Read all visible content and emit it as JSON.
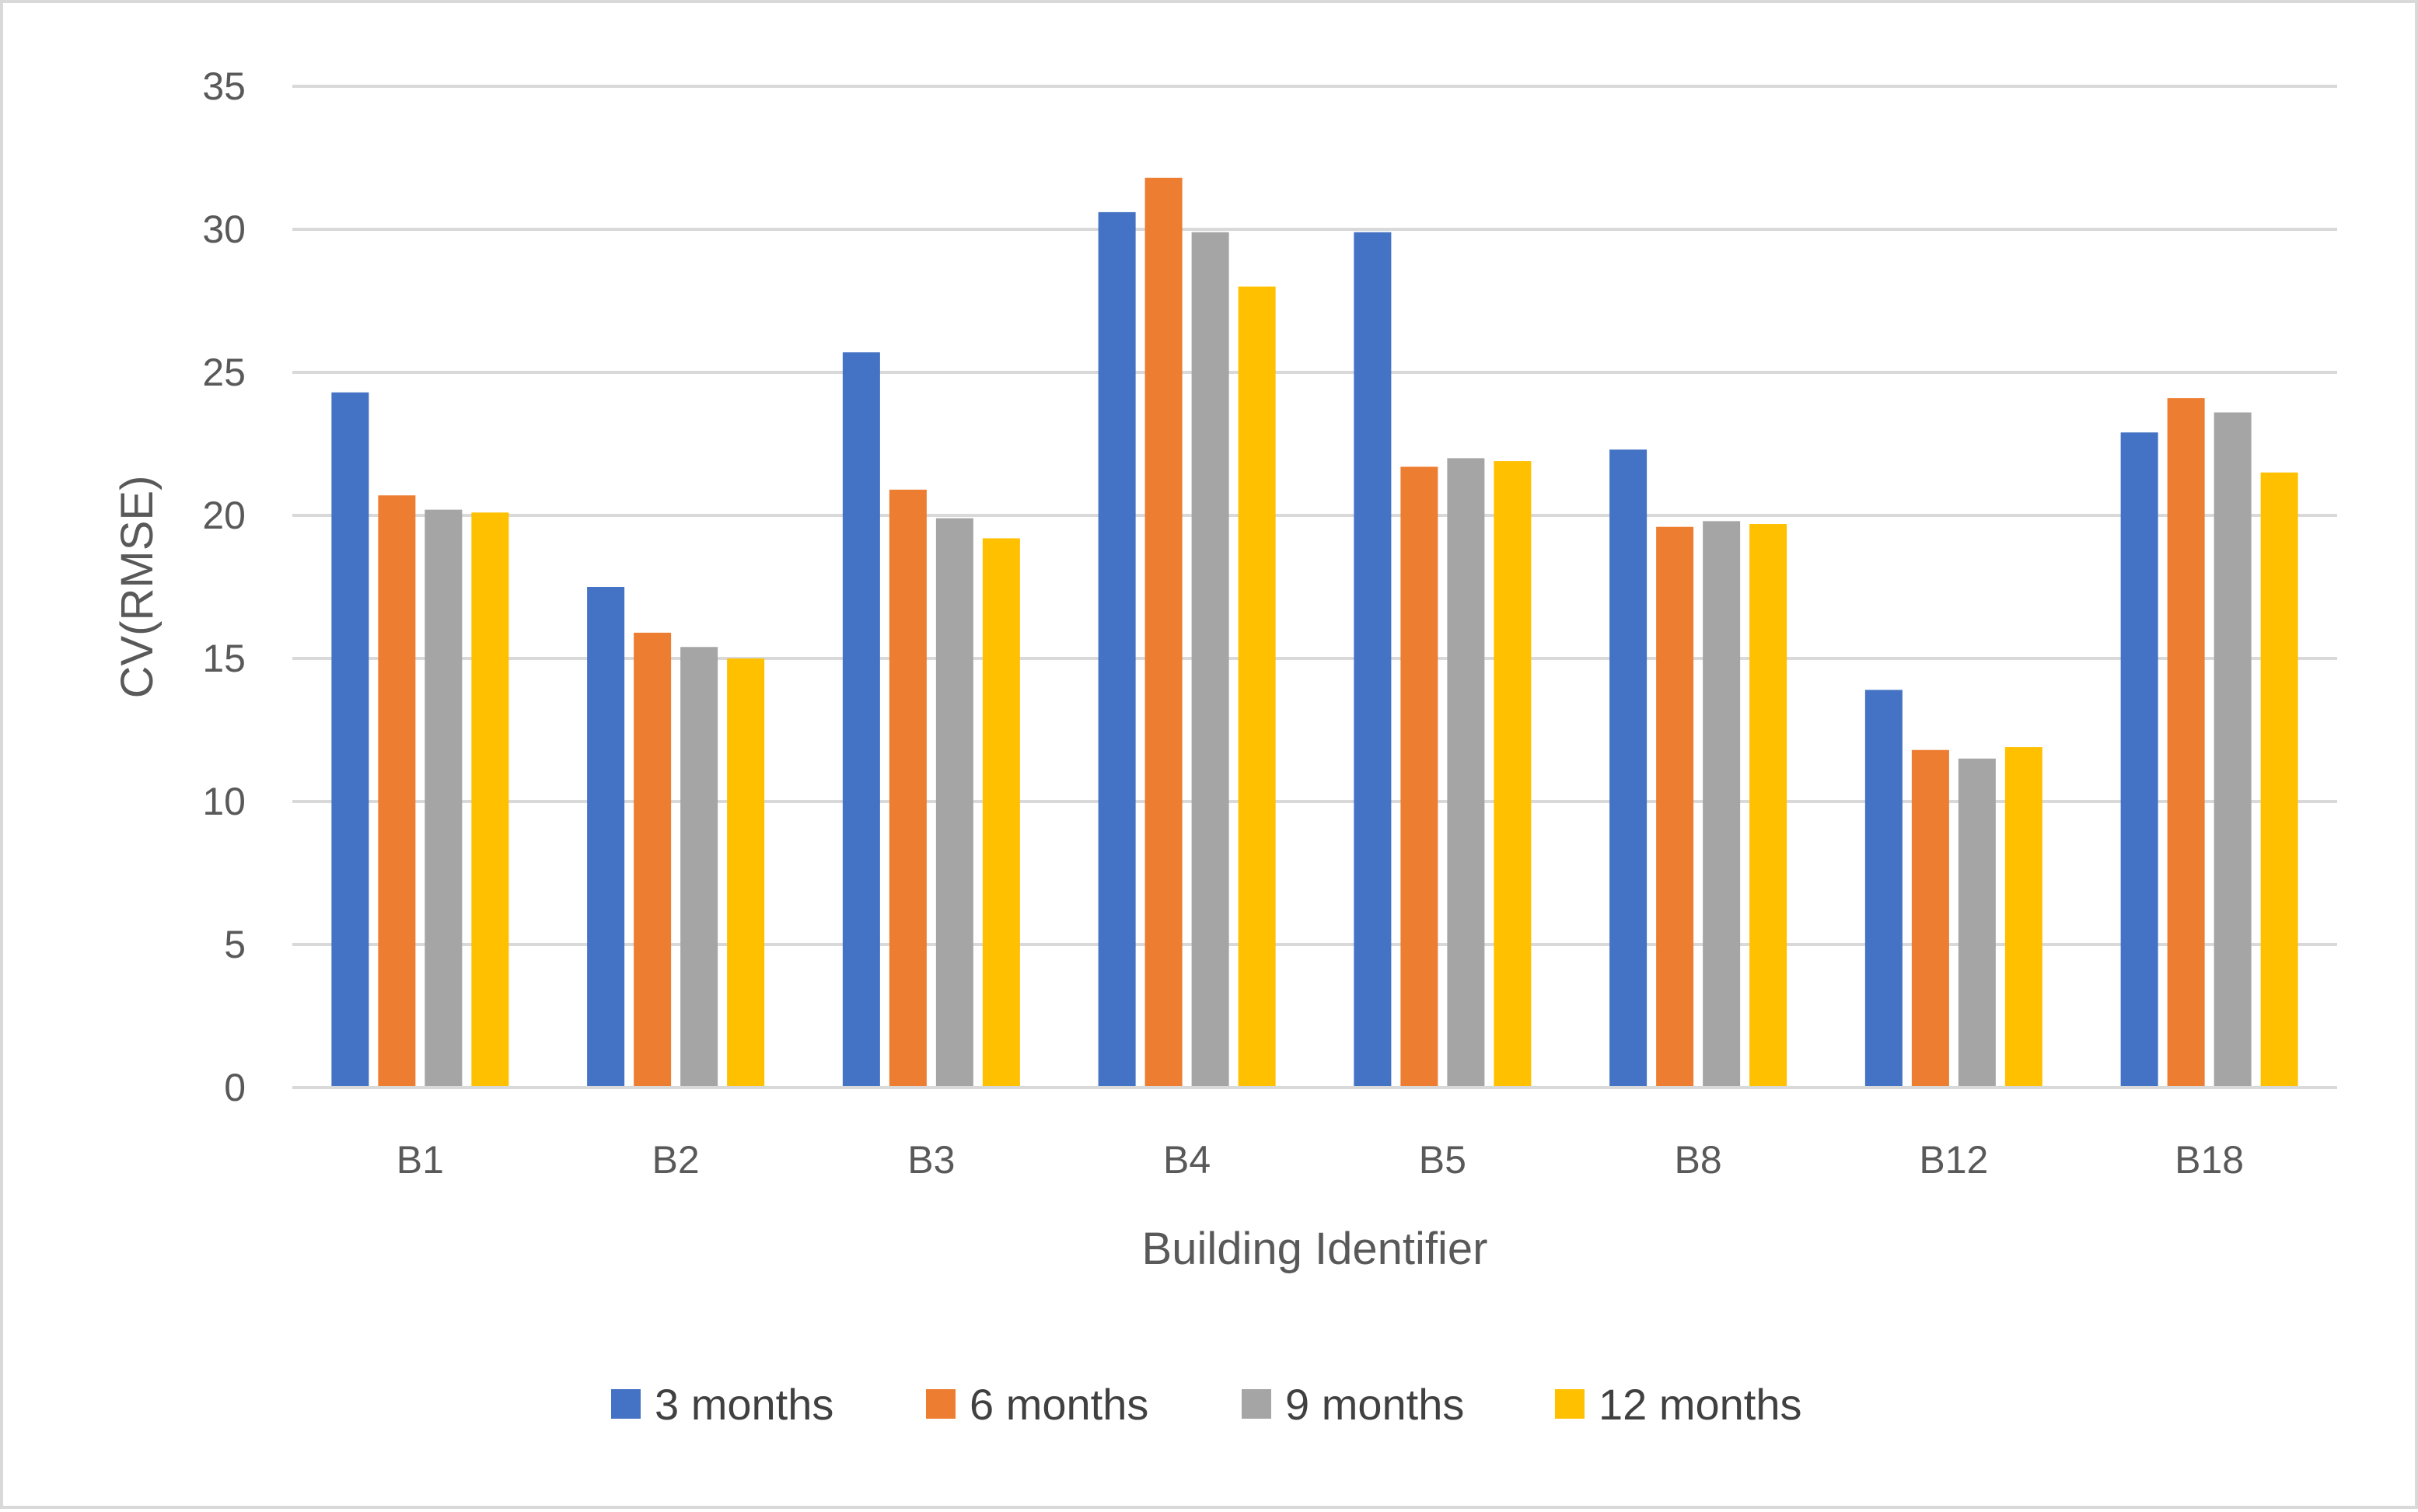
{
  "chart_data": {
    "type": "bar",
    "title": "",
    "xlabel": "Building Identifier",
    "ylabel": "CV(RMSE)",
    "ylim": [
      0,
      35
    ],
    "yticks": [
      0,
      5,
      10,
      15,
      20,
      25,
      30,
      35
    ],
    "grid": true,
    "legend_position": "bottom",
    "categories": [
      "B1",
      "B2",
      "B3",
      "B4",
      "B5",
      "B8",
      "B12",
      "B18"
    ],
    "series": [
      {
        "name": "3 months",
        "color": "#4472c4",
        "values": [
          24.3,
          17.5,
          25.7,
          30.6,
          29.9,
          22.3,
          13.9,
          22.9
        ]
      },
      {
        "name": "6 months",
        "color": "#ed7d31",
        "values": [
          20.7,
          15.9,
          20.9,
          31.8,
          21.7,
          19.6,
          11.8,
          24.1
        ]
      },
      {
        "name": "9 months",
        "color": "#a5a5a5",
        "values": [
          20.2,
          15.4,
          19.9,
          29.9,
          22.0,
          19.8,
          11.5,
          23.6
        ]
      },
      {
        "name": "12 months",
        "color": "#ffc000",
        "values": [
          20.1,
          15.0,
          19.2,
          28.0,
          21.9,
          19.7,
          11.9,
          21.5
        ]
      }
    ]
  }
}
